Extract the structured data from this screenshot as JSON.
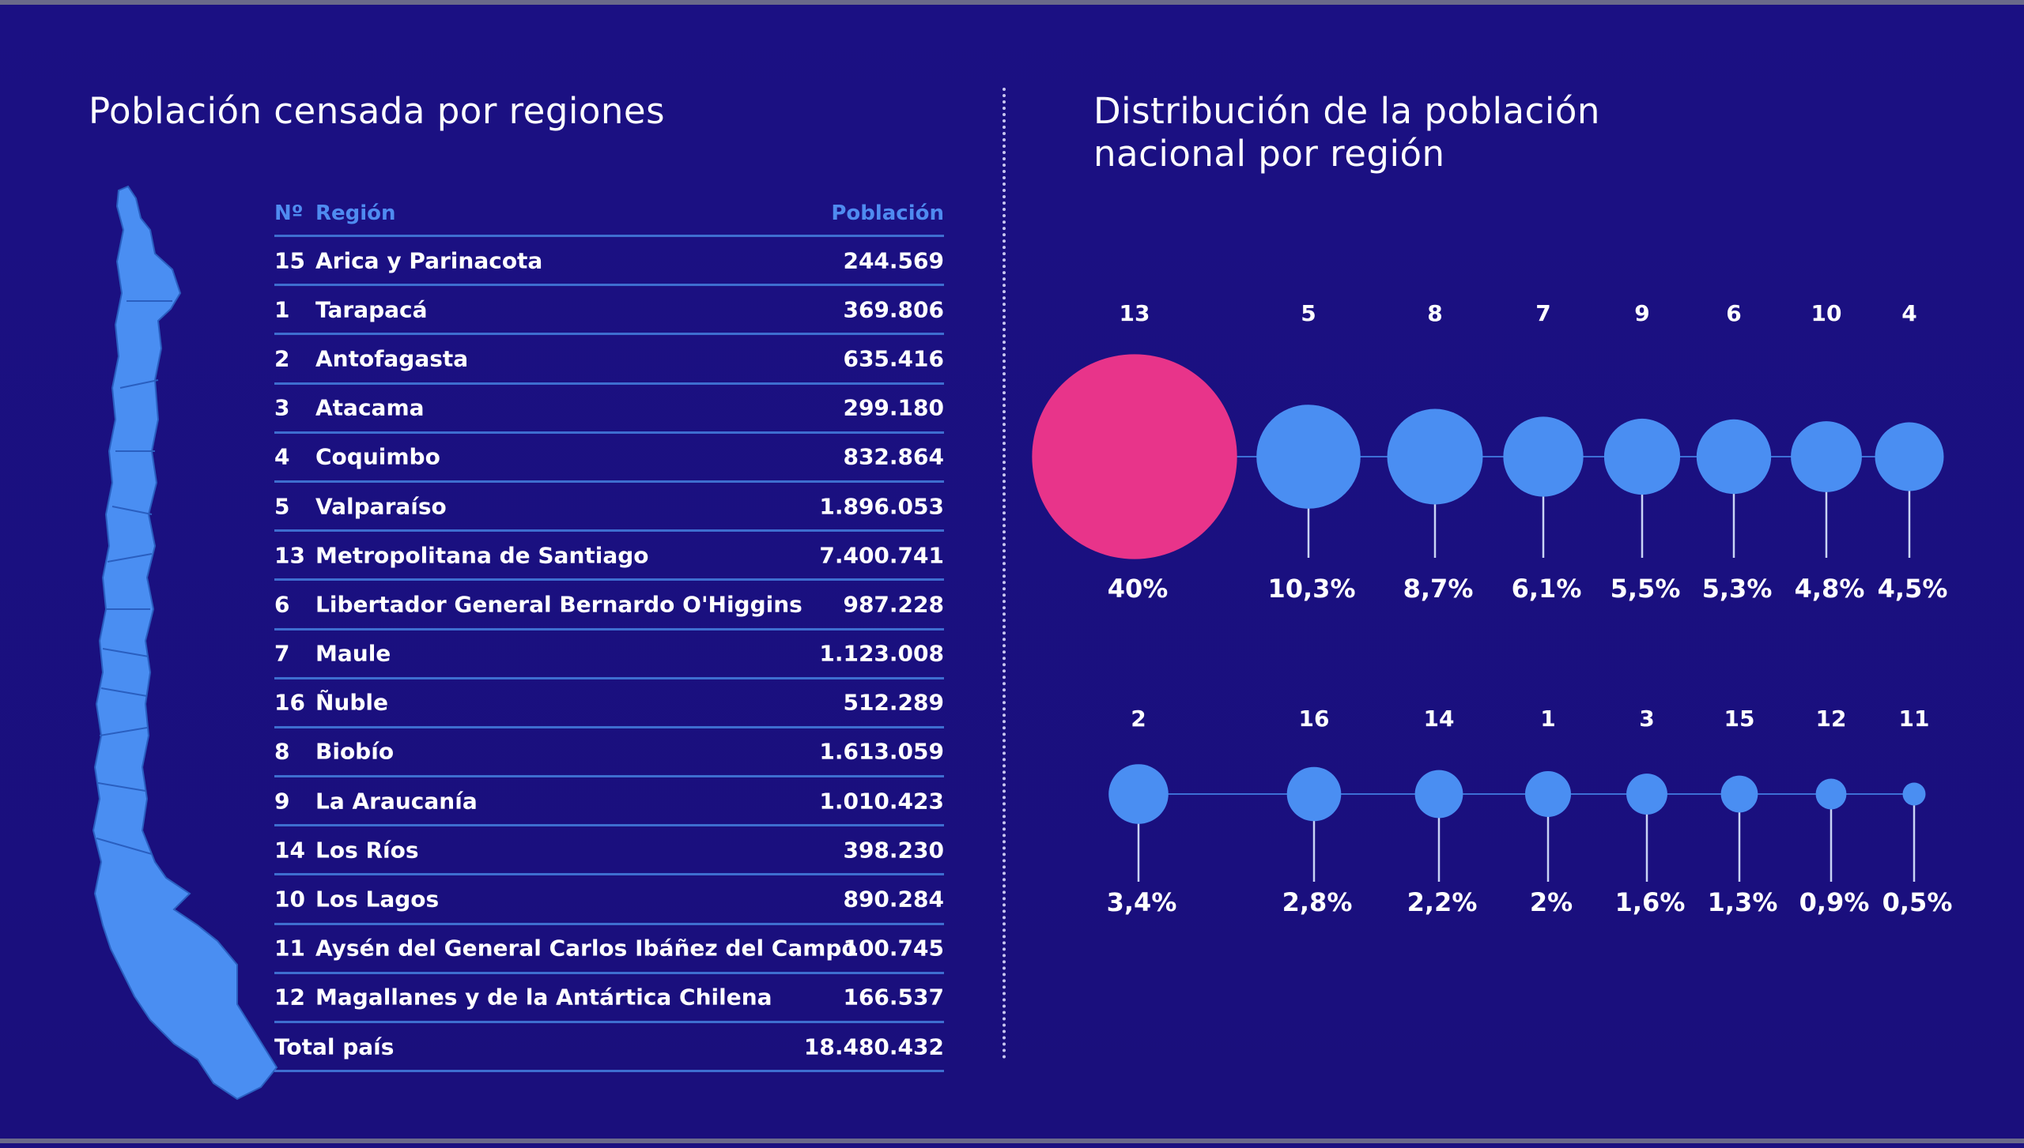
{
  "left_title": "Población censada por regiones",
  "right_title_line1": "Distribución de la población",
  "right_title_line2": "nacional por región",
  "table": {
    "header_num": "Nº",
    "header_region": "Región",
    "header_population": "Población",
    "rows": [
      {
        "num": "15",
        "region": "Arica y Parinacota",
        "population": "244.569"
      },
      {
        "num": "1",
        "region": "Tarapacá",
        "population": "369.806"
      },
      {
        "num": "2",
        "region": "Antofagasta",
        "population": "635.416"
      },
      {
        "num": "3",
        "region": "Atacama",
        "population": "299.180"
      },
      {
        "num": "4",
        "region": "Coquimbo",
        "population": "832.864"
      },
      {
        "num": "5",
        "region": "Valparaíso",
        "population": "1.896.053"
      },
      {
        "num": "13",
        "region": "Metropolitana de Santiago",
        "population": "7.400.741"
      },
      {
        "num": "6",
        "region": "Libertador General Bernardo O'Higgins",
        "population": "987.228"
      },
      {
        "num": "7",
        "region": "Maule",
        "population": "1.123.008"
      },
      {
        "num": "16",
        "region": "Ñuble",
        "population": "512.289"
      },
      {
        "num": "8",
        "region": "Biobío",
        "population": "1.613.059"
      },
      {
        "num": "9",
        "region": "La Araucanía",
        "population": "1.010.423"
      },
      {
        "num": "14",
        "region": "Los Ríos",
        "population": "398.230"
      },
      {
        "num": "10",
        "region": "Los Lagos",
        "population": "890.284"
      },
      {
        "num": "11",
        "region": "Aysén del General Carlos Ibáñez del Campo",
        "population": "100.745"
      },
      {
        "num": "12",
        "region": "Magallanes y de la Antártica Chilena",
        "population": "166.537"
      }
    ],
    "total_label": "Total país",
    "total_value": "18.480.432"
  },
  "colors": {
    "background": "#1b1083",
    "highlight": "#e8348a",
    "bubble": "#4a8ef2",
    "header_text": "#4f8bf0",
    "rule": "#3e6ed0"
  },
  "chart_data": {
    "type": "scatter",
    "encoding": "bubble-size-by-share",
    "highlight": "13",
    "series": [
      {
        "name": "",
        "rows": [
          {
            "region": "13",
            "percent": 40,
            "label": "40%"
          },
          {
            "region": "5",
            "percent": 10.3,
            "label": "10,3%"
          },
          {
            "region": "8",
            "percent": 8.7,
            "label": "8,7%"
          },
          {
            "region": "7",
            "percent": 6.1,
            "label": "6,1%"
          },
          {
            "region": "9",
            "percent": 5.5,
            "label": "5,5%"
          },
          {
            "region": "6",
            "percent": 5.3,
            "label": "5,3%"
          },
          {
            "region": "10",
            "percent": 4.8,
            "label": "4,8%"
          },
          {
            "region": "4",
            "percent": 4.5,
            "label": "4,5%"
          }
        ]
      },
      {
        "name": "",
        "rows": [
          {
            "region": "2",
            "percent": 3.4,
            "label": "3,4%"
          },
          {
            "region": "16",
            "percent": 2.8,
            "label": "2,8%"
          },
          {
            "region": "14",
            "percent": 2.2,
            "label": "2,2%"
          },
          {
            "region": "1",
            "percent": 2,
            "label": "2%"
          },
          {
            "region": "3",
            "percent": 1.6,
            "label": "1,6%"
          },
          {
            "region": "15",
            "percent": 1.3,
            "label": "1,3%"
          },
          {
            "region": "12",
            "percent": 0.9,
            "label": "0,9%"
          },
          {
            "region": "11",
            "percent": 0.5,
            "label": "0,5%"
          }
        ]
      }
    ]
  }
}
